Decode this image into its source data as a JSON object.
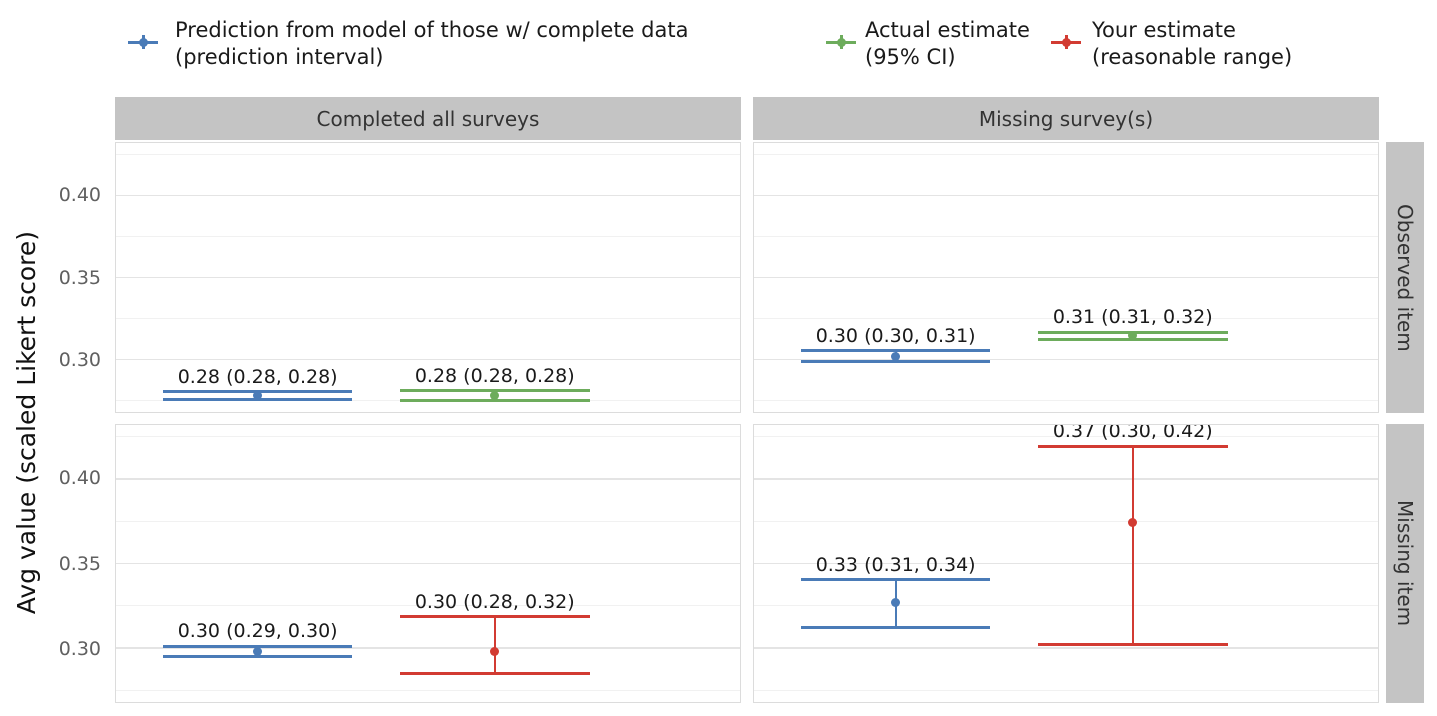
{
  "legend": {
    "items": [
      {
        "name": "prediction",
        "color": "#4a7bb7",
        "lines": [
          "Prediction from model of those w/ complete data",
          "(prediction interval)"
        ]
      },
      {
        "name": "actual",
        "color": "#6dac5c",
        "lines": [
          "Actual estimate",
          "(95% CI)"
        ]
      },
      {
        "name": "estimate",
        "color": "#d23b32",
        "lines": [
          "Your estimate",
          "(reasonable range)"
        ]
      }
    ]
  },
  "chart_data": {
    "type": "errorbar",
    "title": "",
    "ylabel": "Avg value (scaled Likert score)",
    "legend_position": "top",
    "grid": true,
    "col_facets": [
      "Completed all surveys",
      "Missing survey(s)"
    ],
    "row_facets": [
      "Observed item",
      "Missing item"
    ],
    "y_ticks": [
      0.4,
      0.35,
      0.3
    ],
    "y_minor": [
      0.275,
      0.325,
      0.375,
      0.425
    ],
    "ylim": [
      0.268,
      0.432
    ],
    "bar_x": [
      {
        "x0": 0.075,
        "x1": 0.379
      },
      {
        "x0": 0.455,
        "x1": 0.759
      }
    ],
    "panels": [
      {
        "row": 0,
        "col": 0,
        "row_label": "Observed item",
        "col_label": "Completed all surveys",
        "points": [
          {
            "series": "prediction",
            "y": 0.278,
            "ymin": 0.2755,
            "ymax": 0.2805,
            "label": "0.28 (0.28, 0.28)"
          },
          {
            "series": "actual",
            "y": 0.278,
            "ymin": 0.275,
            "ymax": 0.281,
            "label": "0.28 (0.28, 0.28)"
          }
        ]
      },
      {
        "row": 0,
        "col": 1,
        "row_label": "Observed item",
        "col_label": "Missing survey(s)",
        "points": [
          {
            "series": "prediction",
            "y": 0.302,
            "ymin": 0.299,
            "ymax": 0.3055,
            "label": "0.30 (0.30, 0.31)"
          },
          {
            "series": "actual",
            "y": 0.3145,
            "ymin": 0.3125,
            "ymax": 0.3165,
            "label": "0.31 (0.31, 0.32)"
          }
        ]
      },
      {
        "row": 1,
        "col": 0,
        "row_label": "Missing item",
        "col_label": "Completed all surveys",
        "points": [
          {
            "series": "prediction",
            "y": 0.298,
            "ymin": 0.295,
            "ymax": 0.301,
            "label": "0.30 (0.29, 0.30)"
          },
          {
            "series": "estimate",
            "y": 0.298,
            "ymin": 0.285,
            "ymax": 0.3185,
            "label": "0.30 (0.28, 0.32)"
          }
        ]
      },
      {
        "row": 1,
        "col": 1,
        "row_label": "Missing item",
        "col_label": "Missing survey(s)",
        "points": [
          {
            "series": "prediction",
            "y": 0.327,
            "ymin": 0.312,
            "ymax": 0.3405,
            "label": "0.33 (0.31, 0.34)"
          },
          {
            "series": "estimate",
            "y": 0.374,
            "ymin": 0.302,
            "ymax": 0.4195,
            "label": "0.37 (0.30, 0.42)"
          }
        ]
      }
    ]
  },
  "colors": {
    "strip_fill": "#c4c4c4",
    "grid_major": "#e4e4e4",
    "grid_minor": "#f1f1f1",
    "panel_border": "#dcdcdc",
    "tick_label": "#606060",
    "text": "#1a1a1a"
  }
}
